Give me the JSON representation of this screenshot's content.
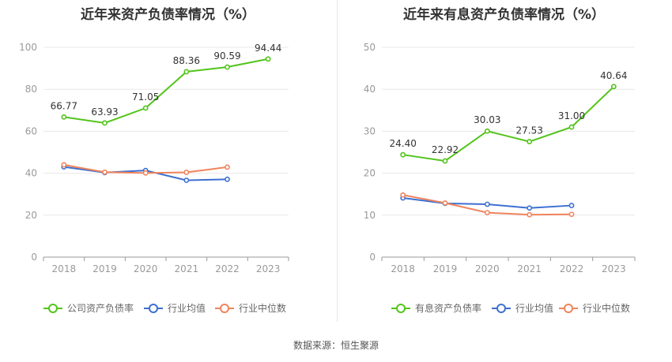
{
  "chart_data": [
    {
      "type": "line",
      "title": "近年来资产负债率情况（%）",
      "categories": [
        "2018",
        "2019",
        "2020",
        "2021",
        "2022",
        "2023"
      ],
      "ylim": [
        0,
        100
      ],
      "yticks": [
        0,
        20,
        40,
        60,
        80,
        100
      ],
      "grid": true,
      "legend_position": "bottom",
      "series": [
        {
          "name": "公司资产负债率",
          "color": "#52c41a",
          "values": [
            66.77,
            63.93,
            71.05,
            88.36,
            90.59,
            94.44
          ],
          "labels": [
            "66.77",
            "63.93",
            "71.05",
            "88.36",
            "90.59",
            "94.44"
          ]
        },
        {
          "name": "行业均值",
          "color": "#3c6fd1",
          "values": [
            43.0,
            40.3,
            41.3,
            36.6,
            37.1,
            null
          ]
        },
        {
          "name": "行业中位数",
          "color": "#f0845c",
          "values": [
            44.0,
            40.5,
            40.1,
            40.4,
            42.9,
            null
          ]
        }
      ]
    },
    {
      "type": "line",
      "title": "近年来有息资产负债率情况（%）",
      "categories": [
        "2018",
        "2019",
        "2020",
        "2021",
        "2022",
        "2023"
      ],
      "ylim": [
        0,
        50
      ],
      "yticks": [
        0,
        10,
        20,
        30,
        40,
        50
      ],
      "grid": true,
      "legend_position": "bottom",
      "series": [
        {
          "name": "有息资产负债率",
          "color": "#52c41a",
          "values": [
            24.4,
            22.92,
            30.03,
            27.53,
            31.0,
            40.64
          ],
          "labels": [
            "24.40",
            "22.92",
            "30.03",
            "27.53",
            "31.00",
            "40.64"
          ]
        },
        {
          "name": "行业均值",
          "color": "#3c6fd1",
          "values": [
            14.1,
            12.8,
            12.6,
            11.7,
            12.3,
            null
          ]
        },
        {
          "name": "行业中位数",
          "color": "#f0845c",
          "values": [
            14.8,
            12.9,
            10.6,
            10.1,
            10.2,
            null
          ]
        }
      ]
    }
  ],
  "footer": {
    "source": "数据来源：恒生聚源"
  }
}
